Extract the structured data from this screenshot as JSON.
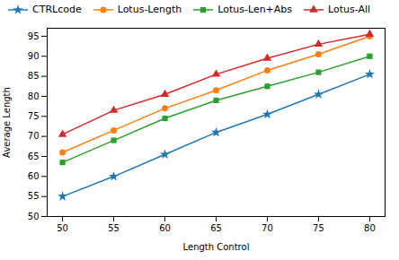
{
  "chart_data": {
    "type": "line",
    "xlabel": "Length Control",
    "ylabel": "Average Length",
    "x": [
      50,
      55,
      60,
      65,
      70,
      75,
      80
    ],
    "series": [
      {
        "name": "CTRLcode",
        "color": "#1f77b4",
        "marker": "star",
        "values": [
          55,
          60,
          65.5,
          71,
          75.5,
          80.5,
          85.5
        ]
      },
      {
        "name": "Lotus-Length",
        "color": "#ff7f0e",
        "marker": "circle",
        "values": [
          66,
          71.5,
          77,
          81.5,
          86.5,
          90.5,
          95
        ]
      },
      {
        "name": "Lotus-Len+Abs",
        "color": "#2ca02c",
        "marker": "square",
        "values": [
          63.5,
          69,
          74.5,
          79,
          82.5,
          86,
          90
        ]
      },
      {
        "name": "Lotus-All",
        "color": "#d62728",
        "marker": "triangle",
        "values": [
          70.5,
          76.5,
          80.5,
          85.5,
          89.5,
          93,
          95.5
        ]
      }
    ],
    "xlim": [
      48.5,
      81.5
    ],
    "ylim": [
      50,
      97
    ],
    "xticks": [
      50,
      55,
      60,
      65,
      70,
      75,
      80
    ],
    "yticks": [
      50,
      55,
      60,
      65,
      70,
      75,
      80,
      85,
      90,
      95
    ],
    "grid": false,
    "legend": "top-left"
  }
}
